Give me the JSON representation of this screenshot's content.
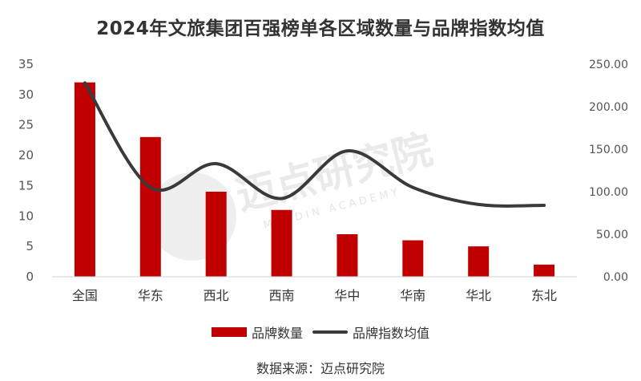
{
  "chart_data": {
    "type": "bar",
    "title": "2024年文旅集团百强榜单各区域数量与品牌指数均值",
    "categories": [
      "全国",
      "华东",
      "西北",
      "西南",
      "华中",
      "华南",
      "华北",
      "东北"
    ],
    "series": [
      {
        "name": "品牌数量",
        "type": "bar",
        "axis": "left",
        "color": "#c00000",
        "values": [
          32,
          23,
          14,
          11,
          7,
          6,
          5,
          2
        ]
      },
      {
        "name": "品牌指数均值",
        "type": "line",
        "axis": "right",
        "color": "#3a3a3a",
        "smooth": true,
        "values": [
          228,
          105,
          133,
          92,
          148,
          105,
          85,
          84
        ]
      }
    ],
    "y_left": {
      "min": 0,
      "max": 35,
      "ticks": [
        "0",
        "5",
        "10",
        "15",
        "20",
        "25",
        "30",
        "35"
      ]
    },
    "y_right": {
      "min": 0,
      "max": 250,
      "ticks": [
        "0.00",
        "50.00",
        "100.00",
        "150.00",
        "200.00",
        "250.00"
      ]
    },
    "grid": false,
    "legend_position": "bottom"
  },
  "source_text": "数据来源：迈点研究院",
  "watermark": {
    "text": "迈点研究院",
    "subtext": "MEADIN ACADEMY"
  }
}
